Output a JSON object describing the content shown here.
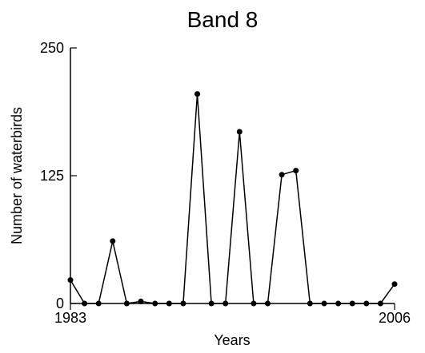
{
  "chart_data": {
    "type": "line",
    "title": "Band 8",
    "xlabel": "Years",
    "ylabel": "Number of waterbirds",
    "xlim": [
      1983,
      2006
    ],
    "ylim": [
      0,
      250
    ],
    "x_tick_labels": [
      "1983",
      "2006"
    ],
    "y_tick_labels": [
      "0",
      "125",
      "250"
    ],
    "grid": false,
    "series": [
      {
        "x": [
          1983,
          1984,
          1985,
          1986,
          1987,
          1988,
          1989,
          1990,
          1991,
          1992,
          1993,
          1994,
          1995,
          1996,
          1997,
          1998,
          1999,
          2000,
          2001,
          2002,
          2003,
          2004,
          2005,
          2006
        ],
        "values": [
          23,
          0,
          0,
          61,
          0,
          2,
          0,
          0,
          0,
          205,
          0,
          0,
          168,
          0,
          0,
          126,
          130,
          0,
          0,
          0,
          0,
          0,
          0,
          19
        ]
      }
    ]
  }
}
